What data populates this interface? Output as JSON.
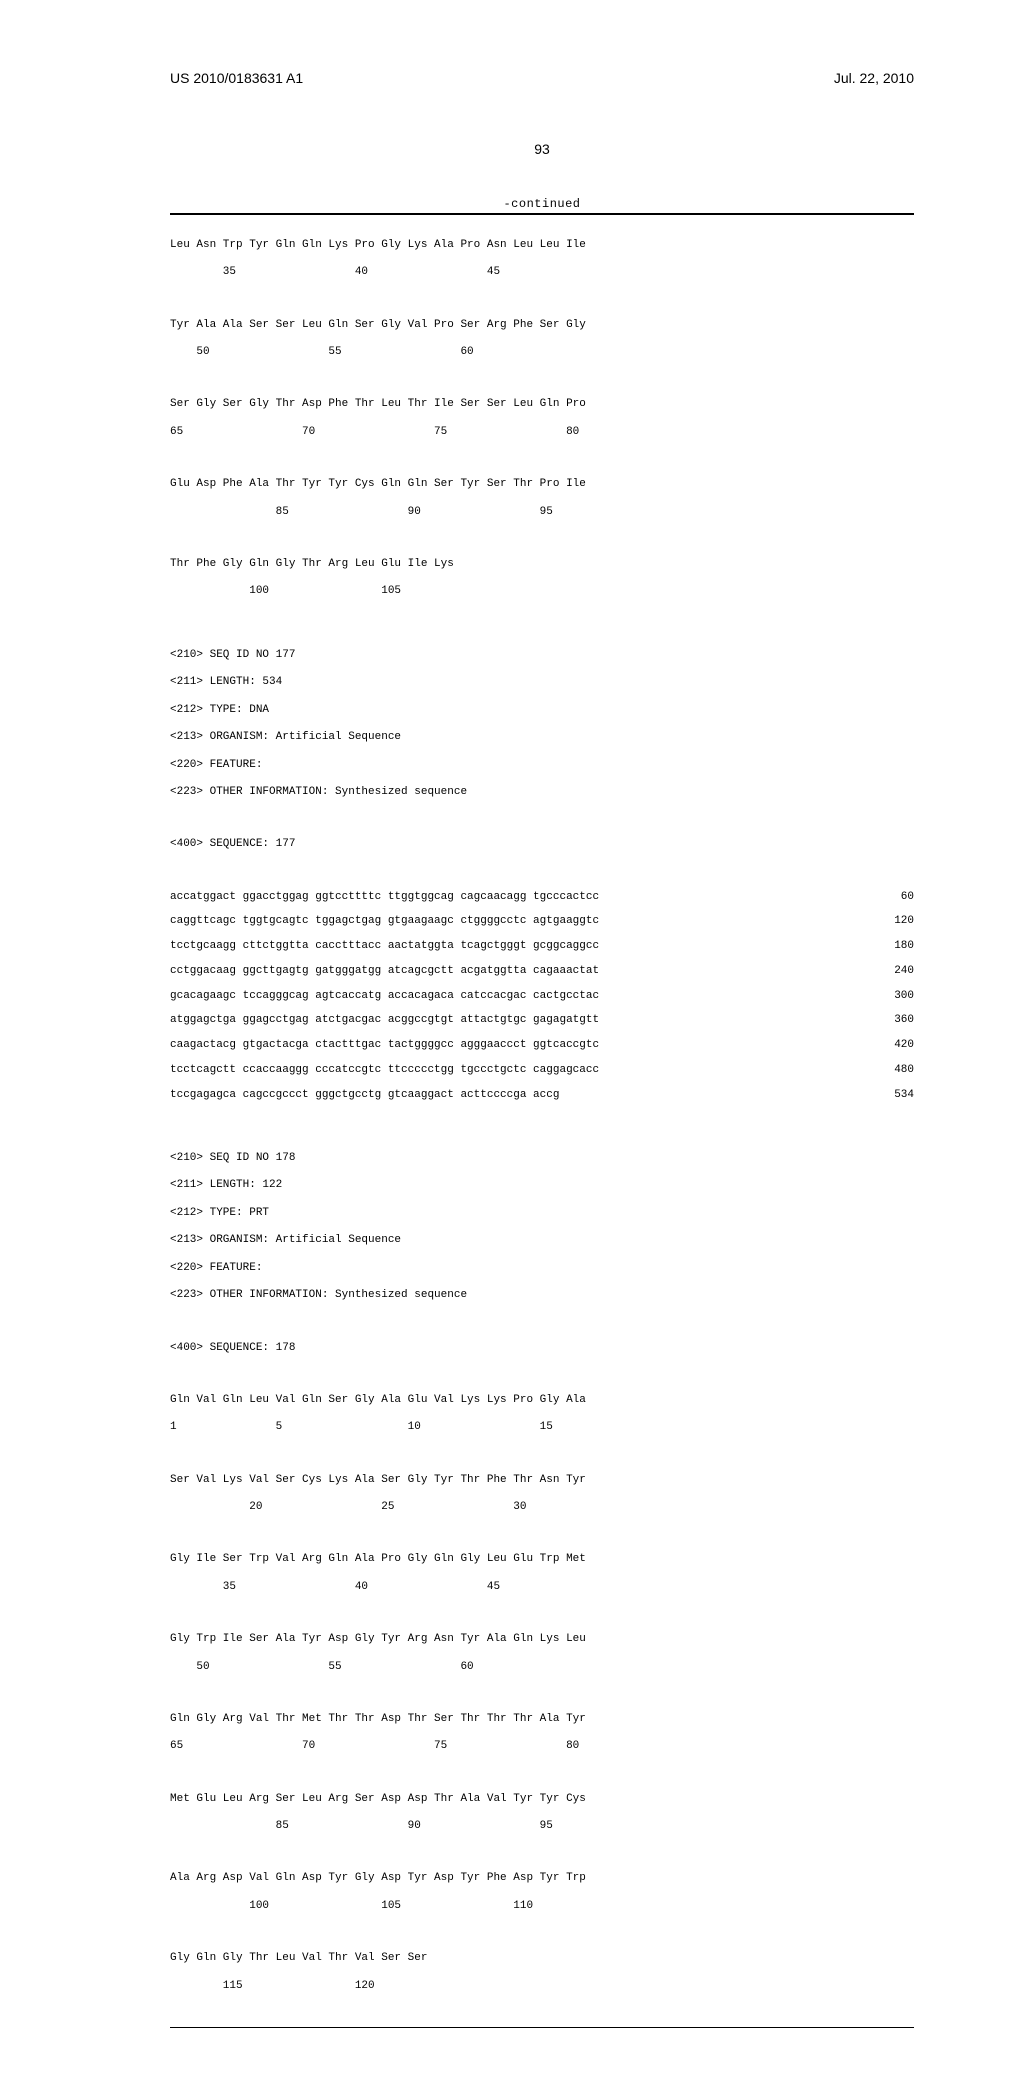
{
  "header": {
    "docnum": "US 2010/0183631 A1",
    "date": "Jul. 22, 2010"
  },
  "pagenum": "93",
  "continued": "-continued",
  "protein176": {
    "l1": "Leu Asn Trp Tyr Gln Gln Lys Pro Gly Lys Ala Pro Asn Leu Leu Ile",
    "p1": "        35                  40                  45",
    "l2": "Tyr Ala Ala Ser Ser Leu Gln Ser Gly Val Pro Ser Arg Phe Ser Gly",
    "p2": "    50                  55                  60",
    "l3": "Ser Gly Ser Gly Thr Asp Phe Thr Leu Thr Ile Ser Ser Leu Gln Pro",
    "p3": "65                  70                  75                  80",
    "l4": "Glu Asp Phe Ala Thr Tyr Tyr Cys Gln Gln Ser Tyr Ser Thr Pro Ile",
    "p4": "                85                  90                  95",
    "l5": "Thr Phe Gly Gln Gly Thr Arg Leu Glu Ile Lys",
    "p5": "            100                 105"
  },
  "meta177": {
    "l1": "<210> SEQ ID NO 177",
    "l2": "<211> LENGTH: 534",
    "l3": "<212> TYPE: DNA",
    "l4": "<213> ORGANISM: Artificial Sequence",
    "l5": "<220> FEATURE:",
    "l6": "<223> OTHER INFORMATION: Synthesized sequence",
    "l7": "<400> SEQUENCE: 177"
  },
  "dna177": [
    {
      "seq": "accatggact ggacctggag ggtccttttc ttggtggcag cagcaacagg tgcccactcc",
      "n": " 60"
    },
    {
      "seq": "caggttcagc tggtgcagtc tggagctgag gtgaagaagc ctggggcctc agtgaaggtc",
      "n": "120"
    },
    {
      "seq": "tcctgcaagg cttctggtta cacctttacc aactatggta tcagctgggt gcggcaggcc",
      "n": "180"
    },
    {
      "seq": "cctggacaag ggcttgagtg gatgggatgg atcagcgctt acgatggtta cagaaactat",
      "n": "240"
    },
    {
      "seq": "gcacagaagc tccagggcag agtcaccatg accacagaca catccacgac cactgcctac",
      "n": "300"
    },
    {
      "seq": "atggagctga ggagcctgag atctgacgac acggccgtgt attactgtgc gagagatgtt",
      "n": "360"
    },
    {
      "seq": "caagactacg gtgactacga ctactttgac tactggggcc agggaaccct ggtcaccgtc",
      "n": "420"
    },
    {
      "seq": "tcctcagctt ccaccaaggg cccatccgtc ttccccctgg tgccctgctc caggagcacc",
      "n": "480"
    },
    {
      "seq": "tccgagagca cagccgccct gggctgcctg gtcaaggact acttccccga accg",
      "n": "534"
    }
  ],
  "meta178": {
    "l1": "<210> SEQ ID NO 178",
    "l2": "<211> LENGTH: 122",
    "l3": "<212> TYPE: PRT",
    "l4": "<213> ORGANISM: Artificial Sequence",
    "l5": "<220> FEATURE:",
    "l6": "<223> OTHER INFORMATION: Synthesized sequence",
    "l7": "<400> SEQUENCE: 178"
  },
  "protein178": {
    "l1": "Gln Val Gln Leu Val Gln Ser Gly Ala Glu Val Lys Lys Pro Gly Ala",
    "p1": "1               5                   10                  15",
    "l2": "Ser Val Lys Val Ser Cys Lys Ala Ser Gly Tyr Thr Phe Thr Asn Tyr",
    "p2": "            20                  25                  30",
    "l3": "Gly Ile Ser Trp Val Arg Gln Ala Pro Gly Gln Gly Leu Glu Trp Met",
    "p3": "        35                  40                  45",
    "l4": "Gly Trp Ile Ser Ala Tyr Asp Gly Tyr Arg Asn Tyr Ala Gln Lys Leu",
    "p4": "    50                  55                  60",
    "l5": "Gln Gly Arg Val Thr Met Thr Thr Asp Thr Ser Thr Thr Thr Ala Tyr",
    "p5": "65                  70                  75                  80",
    "l6": "Met Glu Leu Arg Ser Leu Arg Ser Asp Asp Thr Ala Val Tyr Tyr Cys",
    "p6": "                85                  90                  95",
    "l7": "Ala Arg Asp Val Gln Asp Tyr Gly Asp Tyr Asp Tyr Phe Asp Tyr Trp",
    "p7": "            100                 105                 110",
    "l8": "Gly Gln Gly Thr Leu Val Thr Val Ser Ser",
    "p8": "        115                 120"
  }
}
